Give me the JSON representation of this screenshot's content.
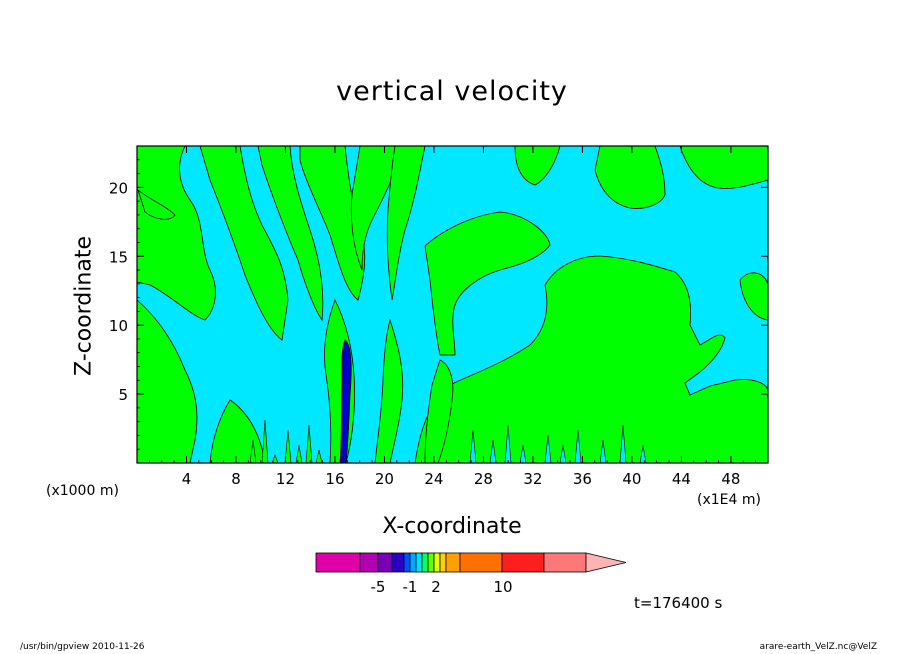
{
  "chart_data": {
    "type": "heatmap",
    "title": "vertical velocity",
    "xlabel": "X-coordinate",
    "ylabel": "Z-coordinate",
    "x_unit_left": "(x1000 m)",
    "x_unit_right": "(x1E4 m)",
    "xlim": [
      0,
      51
    ],
    "ylim": [
      0,
      23
    ],
    "x_ticks": [
      "4",
      "8",
      "12",
      "16",
      "20",
      "24",
      "28",
      "32",
      "36",
      "40",
      "44",
      "48"
    ],
    "y_ticks": [
      "5",
      "10",
      "15",
      "20"
    ],
    "time_label": "t=176400 s",
    "colorbar": {
      "colors": [
        "#e000a8",
        "#b000b0",
        "#7a00b8",
        "#2a00c8",
        "#0050ff",
        "#00a8ff",
        "#00e0ff",
        "#00ff60",
        "#60ff00",
        "#e0ff00",
        "#ffd000",
        "#ffa000",
        "#ff7000",
        "#ff1e1e",
        "#ff7878",
        "#ffb4b4"
      ],
      "labels": [
        "-5",
        "-1",
        "2",
        "10"
      ]
    },
    "regions": {
      "background": "#00e8ff",
      "positive": "#00ff00",
      "strong_negative": "#0000c8",
      "contour_line": "#000000"
    }
  },
  "footer": {
    "left": "/usr/bin/gpview   2010-11-26",
    "right": "arare-earth_VelZ.nc@VelZ"
  }
}
